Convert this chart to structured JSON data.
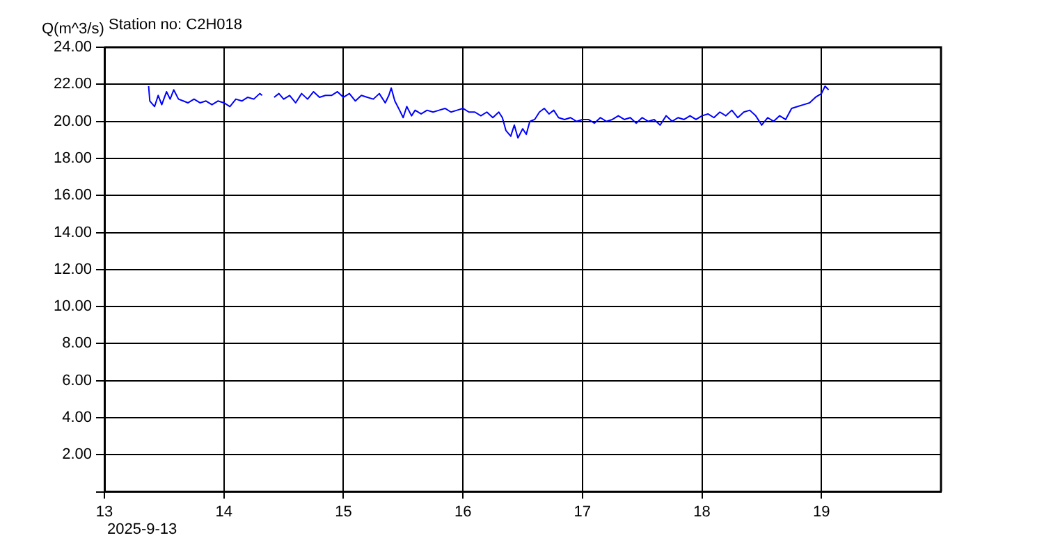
{
  "chart_data": {
    "type": "line",
    "title": "Station no: C2H018",
    "ylabel": "Q(m^3/s)",
    "annotations": [
      "2025-9-13"
    ],
    "x": [
      13.37,
      13.38,
      13.42,
      13.45,
      13.48,
      13.52,
      13.55,
      13.58,
      13.62,
      13.66,
      13.7,
      13.75,
      13.8,
      13.85,
      13.9,
      13.95,
      14.0,
      14.05,
      14.1,
      14.15,
      14.2,
      14.25,
      14.3,
      14.32,
      14.36,
      14.42,
      14.46,
      14.5,
      14.55,
      14.6,
      14.65,
      14.7,
      14.75,
      14.8,
      14.85,
      14.9,
      14.95,
      15.0,
      15.05,
      15.1,
      15.15,
      15.2,
      15.25,
      15.3,
      15.35,
      15.38,
      15.4,
      15.43,
      15.47,
      15.5,
      15.53,
      15.57,
      15.6,
      15.65,
      15.7,
      15.75,
      15.8,
      15.85,
      15.9,
      15.95,
      16.0,
      16.05,
      16.1,
      16.15,
      16.2,
      16.25,
      16.3,
      16.33,
      16.36,
      16.4,
      16.43,
      16.46,
      16.5,
      16.53,
      16.56,
      16.6,
      16.64,
      16.68,
      16.72,
      16.76,
      16.8,
      16.85,
      16.9,
      16.95,
      17.0,
      17.05,
      17.1,
      17.15,
      17.2,
      17.25,
      17.3,
      17.35,
      17.4,
      17.45,
      17.5,
      17.55,
      17.6,
      17.65,
      17.7,
      17.75,
      17.8,
      17.85,
      17.9,
      17.95,
      18.0,
      18.05,
      18.1,
      18.15,
      18.2,
      18.25,
      18.3,
      18.35,
      18.4,
      18.45,
      18.5,
      18.55,
      18.6,
      18.65,
      18.7,
      18.75,
      18.8,
      18.85,
      18.9,
      18.95,
      19.0,
      19.03,
      19.06
    ],
    "series": [
      {
        "color": "#0000ff",
        "values": [
          21.9,
          21.1,
          20.8,
          21.4,
          20.9,
          21.6,
          21.2,
          21.7,
          21.2,
          21.1,
          21.0,
          21.2,
          21.0,
          21.1,
          20.9,
          21.1,
          21.0,
          20.8,
          21.2,
          21.1,
          21.3,
          21.2,
          21.5,
          21.4,
          null,
          21.3,
          21.5,
          21.2,
          21.4,
          21.0,
          21.5,
          21.2,
          21.6,
          21.3,
          21.4,
          21.4,
          21.6,
          21.3,
          21.5,
          21.1,
          21.4,
          21.3,
          21.2,
          21.5,
          21.0,
          21.4,
          21.8,
          21.1,
          20.6,
          20.2,
          20.8,
          20.3,
          20.6,
          20.4,
          20.6,
          20.5,
          20.6,
          20.7,
          20.5,
          20.6,
          20.7,
          20.5,
          20.5,
          20.3,
          20.5,
          20.2,
          20.5,
          20.2,
          19.5,
          19.2,
          19.8,
          19.1,
          19.6,
          19.3,
          20.0,
          20.1,
          20.5,
          20.7,
          20.4,
          20.6,
          20.2,
          20.1,
          20.2,
          20.0,
          20.1,
          20.1,
          19.9,
          20.2,
          20.0,
          20.1,
          20.3,
          20.1,
          20.2,
          19.9,
          20.2,
          20.0,
          20.1,
          19.8,
          20.3,
          20.0,
          20.2,
          20.1,
          20.3,
          20.1,
          20.3,
          20.4,
          20.2,
          20.5,
          20.3,
          20.6,
          20.2,
          20.5,
          20.6,
          20.3,
          19.8,
          20.2,
          20.0,
          20.3,
          20.1,
          20.7,
          20.8,
          20.9,
          21.0,
          21.3,
          21.5,
          21.9,
          21.7
        ]
      }
    ],
    "xlim": [
      13,
      20
    ],
    "xticks": [
      13,
      14,
      15,
      16,
      17,
      18,
      19
    ],
    "ylim": [
      0,
      24
    ],
    "yticks": [
      {
        "value": 0,
        "label": null
      },
      {
        "value": 2,
        "label": "2.00"
      },
      {
        "value": 4,
        "label": "4.00"
      },
      {
        "value": 6,
        "label": "6.00"
      },
      {
        "value": 8,
        "label": "8.00"
      },
      {
        "value": 10,
        "label": "10.00"
      },
      {
        "value": 12,
        "label": "12.00"
      },
      {
        "value": 14,
        "label": "14.00"
      },
      {
        "value": 16,
        "label": "16.00"
      },
      {
        "value": 18,
        "label": "18.00"
      },
      {
        "value": 20,
        "label": "20.00"
      },
      {
        "value": 22,
        "label": "22.00"
      },
      {
        "value": 24,
        "label": "24.00"
      }
    ],
    "grid": true,
    "marker": "none",
    "line_style": "solid"
  }
}
